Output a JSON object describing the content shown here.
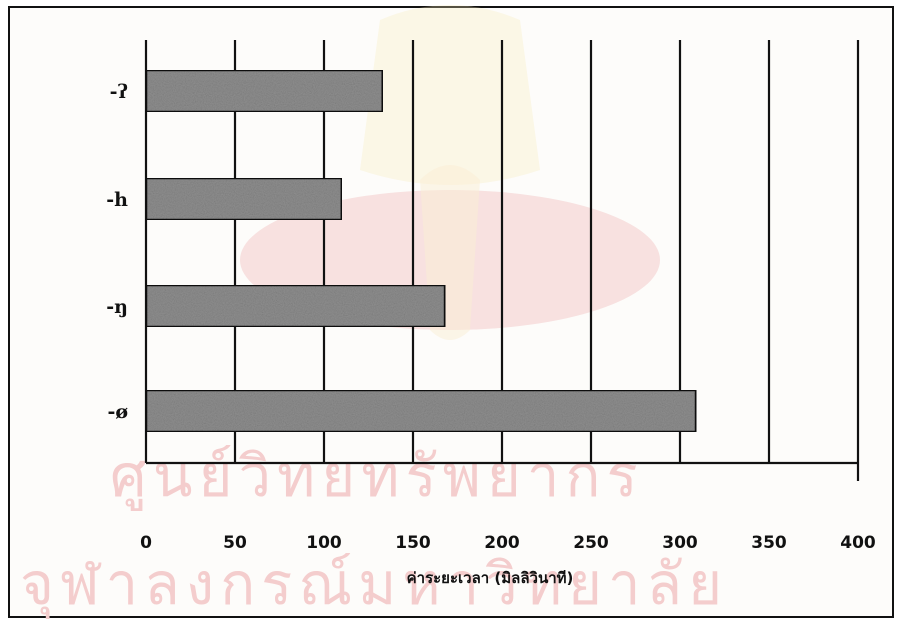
{
  "watermark": {
    "line1": "ศูนย์วิทยทรัพยากร",
    "line2": "จุฬาลงกรณ์มหาวิทยาลัย"
  },
  "chart_data": {
    "type": "bar",
    "orientation": "horizontal",
    "categories": [
      "-ʔ",
      "-h",
      "-ŋ",
      "-ø"
    ],
    "values": [
      133,
      110,
      168,
      309
    ],
    "xlabel": "ค่าระยะเวลา (มิลลิวินาที)",
    "ylabel": "",
    "xlim": [
      0,
      400
    ],
    "xticks": [
      "0",
      "50",
      "100",
      "150",
      "200",
      "250",
      "300",
      "350",
      "400"
    ],
    "grid": "vertical",
    "bar_fill": "#8f8f8f",
    "bar_stroke": "#111111",
    "legend": "none"
  }
}
